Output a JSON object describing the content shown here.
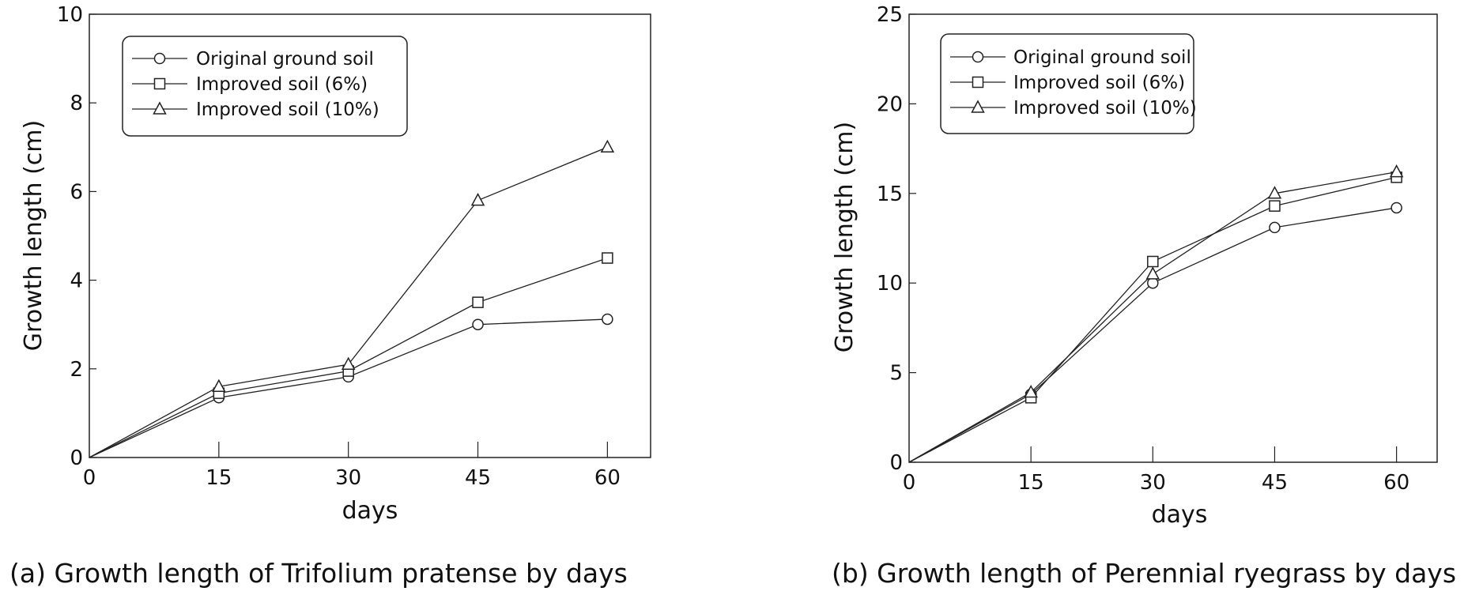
{
  "colors": {
    "ink": "#222222",
    "background": "#ffffff"
  },
  "chart_data": [
    {
      "type": "line",
      "title": "Growth length of Trifolium pratense by days",
      "caption": "(a) Growth length of Trifolium pratense by days",
      "xlabel": "days",
      "ylabel": "Growth length (cm)",
      "xlim": [
        0,
        65
      ],
      "ylim": [
        0,
        10
      ],
      "xticks": [
        0,
        15,
        30,
        45,
        60
      ],
      "yticks": [
        0,
        2,
        4,
        6,
        8,
        10
      ],
      "x": [
        0,
        15,
        30,
        45,
        60
      ],
      "legend_position": "top-left",
      "series": [
        {
          "name": "Original ground soil",
          "marker": "circle",
          "values": [
            0,
            1.35,
            1.82,
            3.0,
            3.12
          ]
        },
        {
          "name": "Improved soil (6%)",
          "marker": "square",
          "values": [
            0,
            1.45,
            1.95,
            3.5,
            4.5
          ]
        },
        {
          "name": "Improved soil (10%)",
          "marker": "triangle",
          "values": [
            0,
            1.6,
            2.1,
            5.8,
            7.0
          ]
        }
      ]
    },
    {
      "type": "line",
      "title": "Growth length of Perennial ryegrass by days",
      "caption": "(b) Growth length of Perennial ryegrass by days",
      "xlabel": "days",
      "ylabel": "Growth length (cm)",
      "xlim": [
        0,
        65
      ],
      "ylim": [
        0,
        25
      ],
      "xticks": [
        0,
        15,
        30,
        45,
        60
      ],
      "yticks": [
        0,
        5,
        10,
        15,
        20,
        25
      ],
      "x": [
        0,
        15,
        30,
        45,
        60
      ],
      "legend_position": "top-left",
      "series": [
        {
          "name": "Original ground soil",
          "marker": "circle",
          "values": [
            0,
            3.8,
            10.0,
            13.1,
            14.2
          ]
        },
        {
          "name": "Improved soil (6%)",
          "marker": "square",
          "values": [
            0,
            3.6,
            11.2,
            14.3,
            15.9
          ]
        },
        {
          "name": "Improved soil (10%)",
          "marker": "triangle",
          "values": [
            0,
            3.9,
            10.5,
            15.0,
            16.2
          ]
        }
      ]
    }
  ]
}
